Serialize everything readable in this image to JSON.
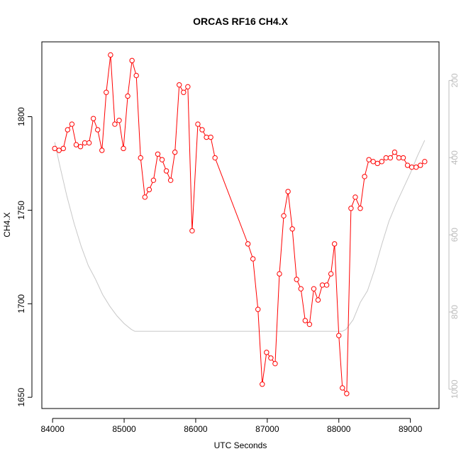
{
  "chart_data": {
    "type": "line",
    "title": "ORCAS RF16 CH4.X",
    "xlabel": "UTC Seconds",
    "ylabel": "CH4.X",
    "xlim": [
      83850,
      89400
    ],
    "ylim": [
      1644,
      1840
    ],
    "x_ticks": [
      84000,
      85000,
      86000,
      87000,
      88000,
      89000
    ],
    "y_ticks": [
      1650,
      1700,
      1750,
      1800
    ],
    "right_axis": {
      "ticks": [
        200,
        400,
        600,
        800,
        1000
      ],
      "lim": [
        100,
        1050
      ],
      "color": "#bdbdbd"
    },
    "colors": {
      "series": "#ff0000",
      "secondary": "#c8c8c8"
    },
    "series": [
      {
        "style": "line+markers",
        "color": "#ff0000",
        "x": [
          84030,
          84090,
          84150,
          84210,
          84270,
          84330,
          84390,
          84450,
          84510,
          84570,
          84630,
          84690,
          84750,
          84810,
          84870,
          84930,
          84990,
          85050,
          85110,
          85170,
          85230,
          85290,
          85350,
          85410,
          85470,
          85530,
          85590,
          85650,
          85710,
          85770,
          85830,
          85890,
          85950,
          86030,
          86090,
          86150,
          86210,
          86270,
          86730,
          86800,
          86870,
          86930,
          86990,
          87050,
          87110,
          87170,
          87230,
          87290,
          87350,
          87410,
          87470,
          87530,
          87590,
          87650,
          87710,
          87770,
          87830,
          87890,
          87940,
          88000,
          88050,
          88110,
          88170,
          88230,
          88300,
          88360,
          88420,
          88480,
          88540,
          88600,
          88660,
          88720,
          88780,
          88840,
          88900,
          88960,
          89020,
          89080,
          89140,
          89200
        ],
        "y": [
          1783,
          1782,
          1783,
          1793,
          1796,
          1785,
          1784,
          1786,
          1786,
          1799,
          1793,
          1782,
          1813,
          1833,
          1796,
          1798,
          1783,
          1811,
          1830,
          1822,
          1778,
          1757,
          1761,
          1766,
          1780,
          1777,
          1771,
          1766,
          1781,
          1817,
          1813,
          1816,
          1739,
          1796,
          1793,
          1789,
          1789,
          1778,
          1732,
          1724,
          1697,
          1657,
          1674,
          1671,
          1668,
          1716,
          1747,
          1760,
          1740,
          1713,
          1708,
          1691,
          1689,
          1708,
          1702,
          1710,
          1710,
          1716,
          1732,
          1683,
          1655,
          1652,
          1751,
          1757,
          1751,
          1768,
          1777,
          1776,
          1775,
          1776,
          1778,
          1778,
          1781,
          1778,
          1778,
          1774,
          1773,
          1773,
          1774,
          1776
        ]
      },
      {
        "style": "line",
        "axis": "right",
        "color": "#c8c8c8",
        "x": [
          84030,
          84100,
          84200,
          84300,
          84400,
          84500,
          84600,
          84700,
          84800,
          84900,
          85000,
          85100,
          85150,
          85200,
          85600,
          86000,
          86500,
          87000,
          87500,
          88000,
          88050,
          88100,
          88200,
          88300,
          88400,
          88500,
          88600,
          88700,
          88800,
          88900,
          89000,
          89100,
          89200
        ],
        "y": [
          360,
          420,
          500,
          570,
          630,
          680,
          715,
          755,
          785,
          810,
          830,
          845,
          850,
          850,
          850,
          850,
          850,
          850,
          850,
          850,
          850,
          845,
          820,
          775,
          745,
          690,
          625,
          565,
          520,
          480,
          440,
          395,
          355
        ]
      }
    ]
  }
}
